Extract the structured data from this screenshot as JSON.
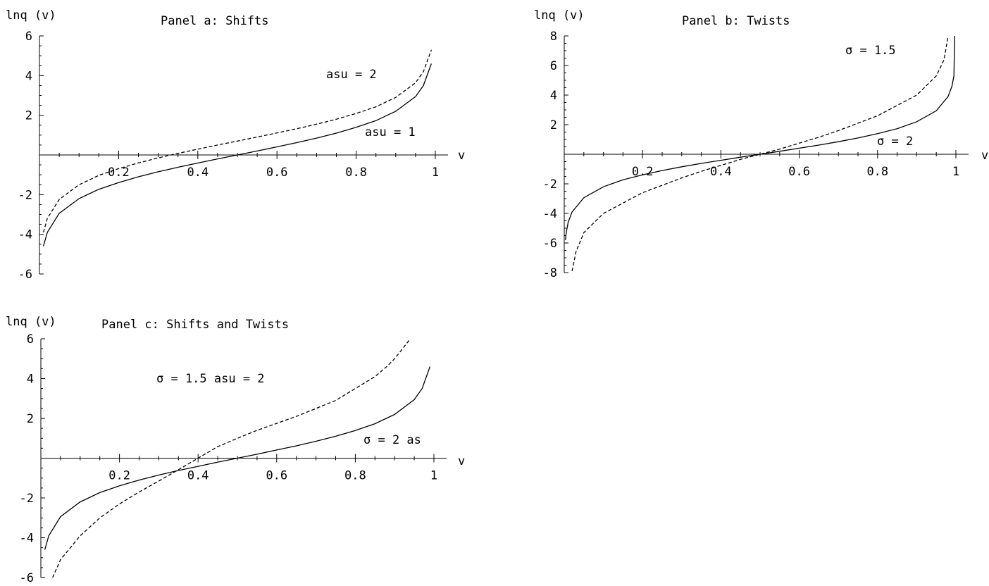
{
  "chart_data": [
    {
      "type": "line",
      "panel": "a",
      "title": "Panel  a: Shifts",
      "ylabel": "lnq (v)",
      "xlabel": "v",
      "xlim": [
        0,
        1
      ],
      "ylim": [
        -6,
        6
      ],
      "xticks": [
        "0.2",
        "0.4",
        "0.6",
        "0.8",
        "1"
      ],
      "yticks": [
        "-6",
        "-4",
        "-2",
        "2",
        "4",
        "6"
      ],
      "annotations": [
        "asu  = 2",
        "asu  = 1"
      ],
      "series": [
        {
          "style": "solid",
          "x": [
            0.01,
            0.02,
            0.05,
            0.1,
            0.15,
            0.2,
            0.25,
            0.3,
            0.35,
            0.4,
            0.45,
            0.5,
            0.55,
            0.6,
            0.65,
            0.7,
            0.75,
            0.8,
            0.85,
            0.9,
            0.95,
            0.97,
            0.99
          ],
          "y": [
            -4.6,
            -3.9,
            -2.94,
            -2.2,
            -1.73,
            -1.39,
            -1.1,
            -0.85,
            -0.62,
            -0.41,
            -0.2,
            0,
            0.2,
            0.41,
            0.62,
            0.85,
            1.1,
            1.39,
            1.73,
            2.2,
            2.94,
            3.5,
            4.6
          ]
        },
        {
          "style": "dashed",
          "x": [
            0.01,
            0.02,
            0.05,
            0.1,
            0.15,
            0.2,
            0.25,
            0.3,
            0.35,
            0.4,
            0.45,
            0.5,
            0.55,
            0.6,
            0.65,
            0.7,
            0.75,
            0.8,
            0.85,
            0.9,
            0.95,
            0.97,
            0.99
          ],
          "y": [
            -3.9,
            -3.2,
            -2.24,
            -1.5,
            -1.03,
            -0.69,
            -0.4,
            -0.15,
            0.08,
            0.29,
            0.5,
            0.7,
            0.9,
            1.11,
            1.32,
            1.55,
            1.8,
            2.09,
            2.43,
            2.9,
            3.64,
            4.2,
            5.3
          ]
        }
      ]
    },
    {
      "type": "line",
      "panel": "b",
      "title": "Panel  b: Twists",
      "ylabel": "lnq (v)",
      "xlabel": "v",
      "xlim": [
        0,
        1
      ],
      "ylim": [
        -8,
        8
      ],
      "xticks": [
        "0.2",
        "0.4",
        "0.6",
        "0.8",
        "1"
      ],
      "yticks": [
        "-8",
        "-6",
        "-4",
        "-2",
        "2",
        "4",
        "6",
        "8"
      ],
      "annotations": [
        "σ  =  1.5",
        "σ  =  2"
      ],
      "series": [
        {
          "style": "solid",
          "x": [
            0.003,
            0.005,
            0.01,
            0.02,
            0.05,
            0.1,
            0.15,
            0.2,
            0.25,
            0.3,
            0.35,
            0.4,
            0.45,
            0.5,
            0.55,
            0.6,
            0.65,
            0.7,
            0.75,
            0.8,
            0.85,
            0.9,
            0.95,
            0.98,
            0.99,
            0.995,
            0.997
          ],
          "y": [
            -5.8,
            -5.3,
            -4.6,
            -3.9,
            -2.94,
            -2.2,
            -1.73,
            -1.39,
            -1.1,
            -0.85,
            -0.62,
            -0.41,
            -0.2,
            0,
            0.2,
            0.41,
            0.62,
            0.85,
            1.1,
            1.39,
            1.73,
            2.2,
            2.94,
            3.9,
            4.6,
            5.3,
            8
          ]
        },
        {
          "style": "dashed",
          "x": [
            0.02,
            0.03,
            0.05,
            0.1,
            0.15,
            0.2,
            0.25,
            0.3,
            0.35,
            0.4,
            0.45,
            0.5,
            0.55,
            0.6,
            0.65,
            0.7,
            0.75,
            0.8,
            0.85,
            0.9,
            0.95,
            0.97,
            0.98
          ],
          "y": [
            -7.9,
            -6.6,
            -5.3,
            -4.0,
            -3.3,
            -2.6,
            -2.1,
            -1.6,
            -1.15,
            -0.75,
            -0.35,
            0,
            0.35,
            0.75,
            1.15,
            1.6,
            2.1,
            2.6,
            3.3,
            4.0,
            5.3,
            6.4,
            8
          ]
        }
      ]
    },
    {
      "type": "line",
      "panel": "c",
      "title": "Panel  c: Shifts  and  Twists",
      "ylabel": "lnq (v)",
      "xlabel": "v",
      "xlim": [
        0,
        1
      ],
      "ylim": [
        -6,
        6
      ],
      "xticks": [
        "0.2",
        "0.4",
        "0.6",
        "0.8",
        "1"
      ],
      "yticks": [
        "-6",
        "-4",
        "-2",
        "2",
        "4",
        "6"
      ],
      "annotations": [
        "σ  =  1.5  asu  = 2",
        "σ  =  2  as"
      ],
      "series": [
        {
          "style": "solid",
          "x": [
            0.01,
            0.02,
            0.05,
            0.1,
            0.15,
            0.2,
            0.25,
            0.3,
            0.35,
            0.4,
            0.45,
            0.5,
            0.55,
            0.6,
            0.65,
            0.7,
            0.75,
            0.8,
            0.85,
            0.9,
            0.95,
            0.97,
            0.99
          ],
          "y": [
            -4.6,
            -3.9,
            -2.94,
            -2.2,
            -1.73,
            -1.39,
            -1.1,
            -0.85,
            -0.62,
            -0.41,
            -0.2,
            0,
            0.2,
            0.41,
            0.62,
            0.85,
            1.1,
            1.39,
            1.73,
            2.2,
            2.94,
            3.5,
            4.6
          ]
        },
        {
          "style": "dashed",
          "x": [
            0.03,
            0.05,
            0.1,
            0.15,
            0.2,
            0.25,
            0.3,
            0.35,
            0.4,
            0.45,
            0.5,
            0.55,
            0.6,
            0.65,
            0.7,
            0.75,
            0.8,
            0.85,
            0.88,
            0.9,
            0.92,
            0.94
          ],
          "y": [
            -6,
            -5.1,
            -3.9,
            -3.0,
            -2.3,
            -1.7,
            -1.15,
            -0.58,
            0,
            0.58,
            1.0,
            1.4,
            1.75,
            2.1,
            2.5,
            2.9,
            3.5,
            4.1,
            4.6,
            5.0,
            5.5,
            6.0
          ]
        }
      ]
    }
  ]
}
